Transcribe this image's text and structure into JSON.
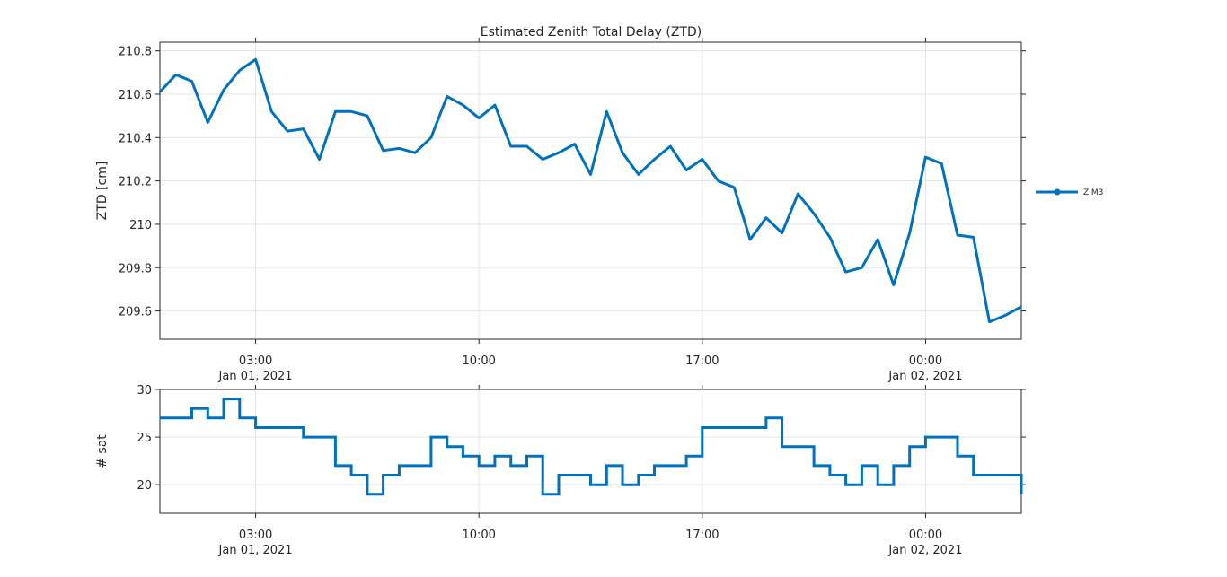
{
  "chart_data": [
    {
      "type": "line",
      "title": "Estimated Zenith Total Delay (ZTD)",
      "y_label": "ZTD [cm]",
      "x": [
        "2021-01-01T00:00",
        "2021-01-01T00:30",
        "2021-01-01T01:00",
        "2021-01-01T01:30",
        "2021-01-01T02:00",
        "2021-01-01T02:30",
        "2021-01-01T03:00",
        "2021-01-01T03:30",
        "2021-01-01T04:00",
        "2021-01-01T04:30",
        "2021-01-01T05:00",
        "2021-01-01T05:30",
        "2021-01-01T06:00",
        "2021-01-01T06:30",
        "2021-01-01T07:00",
        "2021-01-01T07:30",
        "2021-01-01T08:00",
        "2021-01-01T08:30",
        "2021-01-01T09:00",
        "2021-01-01T09:30",
        "2021-01-01T10:00",
        "2021-01-01T10:30",
        "2021-01-01T11:00",
        "2021-01-01T11:30",
        "2021-01-01T12:00",
        "2021-01-01T12:30",
        "2021-01-01T13:00",
        "2021-01-01T13:30",
        "2021-01-01T14:00",
        "2021-01-01T14:30",
        "2021-01-01T15:00",
        "2021-01-01T15:30",
        "2021-01-01T16:00",
        "2021-01-01T16:30",
        "2021-01-01T17:00",
        "2021-01-01T17:30",
        "2021-01-01T18:00",
        "2021-01-01T18:30",
        "2021-01-01T19:00",
        "2021-01-01T19:30",
        "2021-01-01T20:00",
        "2021-01-01T20:30",
        "2021-01-01T21:00",
        "2021-01-01T21:30",
        "2021-01-01T22:00",
        "2021-01-01T22:30",
        "2021-01-01T23:00",
        "2021-01-01T23:30",
        "2021-01-02T00:00",
        "2021-01-02T00:30",
        "2021-01-02T01:00",
        "2021-01-02T01:30",
        "2021-01-02T02:00",
        "2021-01-02T02:30",
        "2021-01-02T03:00"
      ],
      "series": [
        {
          "name": "ZIM3",
          "color": "#0072bd",
          "values": [
            210.61,
            210.69,
            210.66,
            210.47,
            210.62,
            210.71,
            210.76,
            210.52,
            210.43,
            210.44,
            210.3,
            210.52,
            210.52,
            210.5,
            210.34,
            210.35,
            210.33,
            210.4,
            210.59,
            210.55,
            210.49,
            210.55,
            210.36,
            210.36,
            210.3,
            210.33,
            210.37,
            210.23,
            210.52,
            210.33,
            210.23,
            210.3,
            210.36,
            210.25,
            210.3,
            210.2,
            210.17,
            209.93,
            210.03,
            209.96,
            210.14,
            210.05,
            209.94,
            209.78,
            209.8,
            209.93,
            209.72,
            209.96,
            210.31,
            210.28,
            209.95,
            209.94,
            209.55,
            209.58,
            209.62
          ]
        }
      ],
      "xlim": [
        "2021-01-01T00:00",
        "2021-01-02T03:00"
      ],
      "xticks": [
        {
          "value": "2021-01-01T03:00",
          "label": "03:00\nJan 01, 2021"
        },
        {
          "value": "2021-01-01T10:00",
          "label": "10:00"
        },
        {
          "value": "2021-01-01T17:00",
          "label": "17:00"
        },
        {
          "value": "2021-01-02T00:00",
          "label": "00:00\nJan 02, 2021"
        }
      ],
      "ylim": [
        209.47,
        210.84
      ],
      "yticks": [
        209.6,
        209.8,
        210,
        210.2,
        210.4,
        210.6,
        210.8
      ],
      "grid": true
    },
    {
      "type": "step",
      "y_label": "# sat",
      "x": [
        "2021-01-01T00:00",
        "2021-01-01T00:30",
        "2021-01-01T01:00",
        "2021-01-01T01:30",
        "2021-01-01T02:00",
        "2021-01-01T02:30",
        "2021-01-01T03:00",
        "2021-01-01T03:30",
        "2021-01-01T04:00",
        "2021-01-01T04:30",
        "2021-01-01T05:00",
        "2021-01-01T05:30",
        "2021-01-01T06:00",
        "2021-01-01T06:30",
        "2021-01-01T07:00",
        "2021-01-01T07:30",
        "2021-01-01T08:00",
        "2021-01-01T08:30",
        "2021-01-01T09:00",
        "2021-01-01T09:30",
        "2021-01-01T10:00",
        "2021-01-01T10:30",
        "2021-01-01T11:00",
        "2021-01-01T11:30",
        "2021-01-01T12:00",
        "2021-01-01T12:30",
        "2021-01-01T13:00",
        "2021-01-01T13:30",
        "2021-01-01T14:00",
        "2021-01-01T14:30",
        "2021-01-01T15:00",
        "2021-01-01T15:30",
        "2021-01-01T16:00",
        "2021-01-01T16:30",
        "2021-01-01T17:00",
        "2021-01-01T17:30",
        "2021-01-01T18:00",
        "2021-01-01T18:30",
        "2021-01-01T19:00",
        "2021-01-01T19:30",
        "2021-01-01T20:00",
        "2021-01-01T20:30",
        "2021-01-01T21:00",
        "2021-01-01T21:30",
        "2021-01-01T22:00",
        "2021-01-01T22:30",
        "2021-01-01T23:00",
        "2021-01-01T23:30",
        "2021-01-02T00:00",
        "2021-01-02T00:30",
        "2021-01-02T01:00",
        "2021-01-02T01:30",
        "2021-01-02T02:00",
        "2021-01-02T02:30",
        "2021-01-02T03:00"
      ],
      "color": "#0072bd",
      "values": [
        27,
        27,
        28,
        27,
        29,
        27,
        26,
        26,
        26,
        25,
        25,
        22,
        21,
        19,
        21,
        22,
        22,
        25,
        24,
        23,
        22,
        23,
        22,
        23,
        19,
        21,
        21,
        20,
        22,
        20,
        21,
        22,
        22,
        23,
        26,
        26,
        26,
        26,
        27,
        24,
        24,
        22,
        21,
        20,
        22,
        20,
        22,
        24,
        25,
        25,
        23,
        21,
        21,
        21,
        19
      ],
      "xlim": [
        "2021-01-01T00:00",
        "2021-01-02T03:00"
      ],
      "xticks": [
        {
          "value": "2021-01-01T03:00",
          "label": "03:00\nJan 01, 2021"
        },
        {
          "value": "2021-01-01T10:00",
          "label": "10:00"
        },
        {
          "value": "2021-01-01T17:00",
          "label": "17:00"
        },
        {
          "value": "2021-01-02T00:00",
          "label": "00:00\nJan 02, 2021"
        }
      ],
      "ylim": [
        17,
        30
      ],
      "yticks": [
        20,
        25,
        30
      ],
      "grid": true
    }
  ]
}
